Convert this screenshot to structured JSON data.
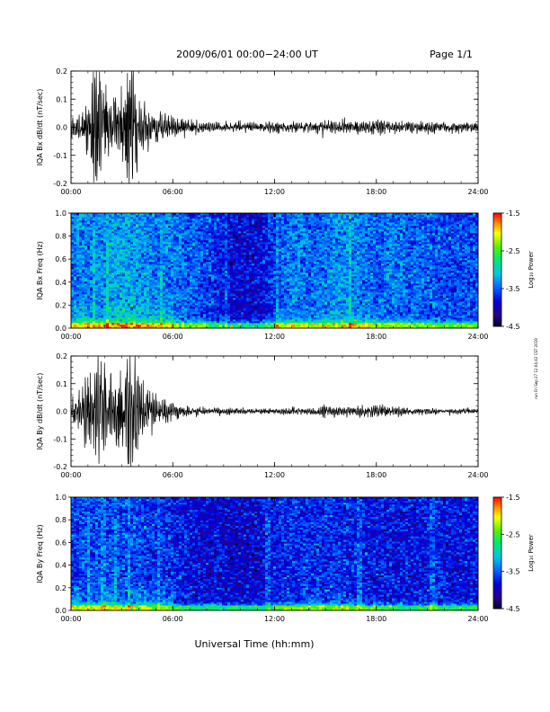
{
  "header": {
    "date_range": "2009/06/01  00:00−24:00 UT",
    "page": "Page 1/1"
  },
  "footer": {
    "xlabel": "Universal Time (hh:mm)",
    "side_stamp": "run Fri Sep 27 12:04:43 CST 2019"
  },
  "colorbar": {
    "label": "Log₁₀ Power",
    "ticks": [
      "-1.5",
      "-2.5",
      "-3.5",
      "-4.5"
    ],
    "colors": [
      "#ff0000",
      "#ff8800",
      "#ffff00",
      "#00ff00",
      "#00dddd",
      "#0088ff",
      "#0000cc",
      "#000044"
    ]
  },
  "chart_data": [
    {
      "type": "line",
      "title": "",
      "ylabel": "IQA Bx dB/dt (nT/sec)",
      "xlabel": "",
      "xlim": [
        0,
        24
      ],
      "ylim": [
        -0.2,
        0.2
      ],
      "x_ticks": [
        "00:00",
        "06:00",
        "12:00",
        "18:00",
        "24:00"
      ],
      "y_ticks": [
        "0.2",
        "0.1",
        "0.0",
        "-0.1",
        "-0.2"
      ],
      "envelope": {
        "hours": [
          0,
          0.5,
          1,
          1.5,
          2,
          2.5,
          3,
          3.5,
          4,
          4.5,
          5,
          5.5,
          6,
          7,
          8,
          9,
          10,
          11,
          12,
          13,
          14,
          15,
          16,
          17,
          18,
          19,
          20,
          21,
          22,
          23,
          24
        ],
        "amplitude": [
          0.03,
          0.04,
          0.09,
          0.2,
          0.12,
          0.08,
          0.1,
          0.2,
          0.1,
          0.06,
          0.05,
          0.035,
          0.03,
          0.02,
          0.015,
          0.015,
          0.015,
          0.015,
          0.015,
          0.015,
          0.018,
          0.02,
          0.022,
          0.02,
          0.022,
          0.02,
          0.018,
          0.017,
          0.016,
          0.015,
          0.015
        ]
      }
    },
    {
      "type": "heatmap",
      "title": "",
      "ylabel": "IQA Bx Freq (Hz)",
      "xlabel": "",
      "xlim": [
        0,
        24
      ],
      "ylim": [
        0,
        1.0
      ],
      "zlim": [
        -4.5,
        -1.5
      ],
      "x_ticks": [
        "00:00",
        "06:00",
        "12:00",
        "18:00",
        "24:00"
      ],
      "y_ticks": [
        "1.0",
        "0.8",
        "0.6",
        "0.4",
        "0.2",
        "0.0"
      ],
      "background_log_power_by_hour": [
        -3.4,
        -3.4,
        -3.3,
        -3.2,
        -3.3,
        -3.4,
        -3.4,
        -3.5,
        -3.6,
        -3.8,
        -3.9,
        -3.9,
        -3.6,
        -3.4,
        -3.5,
        -3.4,
        -3.3,
        -3.4,
        -3.5,
        -3.4,
        -3.5,
        -3.5,
        -3.6,
        -3.6,
        -3.6
      ]
    },
    {
      "type": "line",
      "title": "",
      "ylabel": "IQA By dB/dt (nT/sec)",
      "xlabel": "",
      "xlim": [
        0,
        24
      ],
      "ylim": [
        -0.2,
        0.2
      ],
      "x_ticks": [
        "00:00",
        "06:00",
        "12:00",
        "18:00",
        "24:00"
      ],
      "y_ticks": [
        "0.2",
        "0.1",
        "0.0",
        "-0.1",
        "-0.2"
      ],
      "envelope": {
        "hours": [
          0,
          0.5,
          1,
          1.5,
          2,
          2.5,
          3,
          3.5,
          4,
          4.5,
          5,
          5.5,
          6,
          7,
          8,
          9,
          10,
          11,
          12,
          13,
          14,
          15,
          16,
          17,
          18,
          19,
          20,
          21,
          22,
          23,
          24
        ],
        "amplitude": [
          0.04,
          0.05,
          0.12,
          0.2,
          0.15,
          0.1,
          0.12,
          0.2,
          0.12,
          0.06,
          0.05,
          0.035,
          0.025,
          0.015,
          0.01,
          0.01,
          0.01,
          0.008,
          0.008,
          0.01,
          0.012,
          0.02,
          0.015,
          0.02,
          0.015,
          0.015,
          0.012,
          0.01,
          0.008,
          0.008,
          0.008
        ]
      }
    },
    {
      "type": "heatmap",
      "title": "",
      "ylabel": "IQA By Freq (Hz)",
      "xlabel": "",
      "xlim": [
        0,
        24
      ],
      "ylim": [
        0,
        1.0
      ],
      "zlim": [
        -4.5,
        -1.5
      ],
      "x_ticks": [
        "00:00",
        "06:00",
        "12:00",
        "18:00",
        "24:00"
      ],
      "y_ticks": [
        "1.0",
        "0.8",
        "0.6",
        "0.4",
        "0.2",
        "0.0"
      ],
      "background_log_power_by_hour": [
        -3.6,
        -3.6,
        -3.6,
        -3.6,
        -3.6,
        -3.7,
        -3.7,
        -3.8,
        -3.9,
        -3.9,
        -3.9,
        -3.9,
        -3.8,
        -3.7,
        -3.7,
        -3.7,
        -3.7,
        -3.8,
        -3.8,
        -3.8,
        -3.8,
        -3.8,
        -3.8,
        -3.8,
        -3.8
      ]
    }
  ]
}
